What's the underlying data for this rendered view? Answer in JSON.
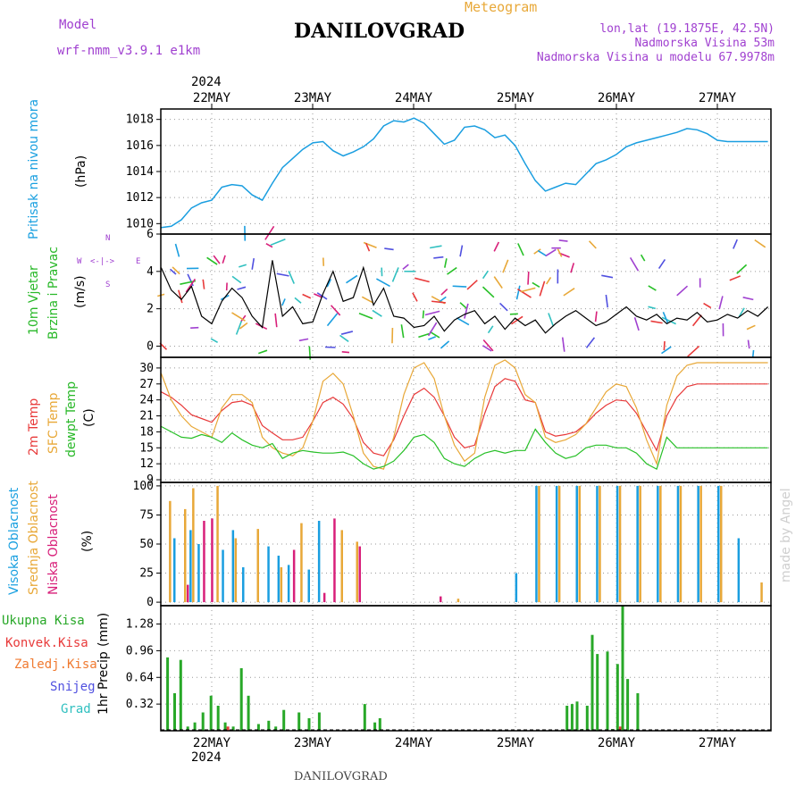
{
  "header": {
    "model_label": "Model",
    "model_name": "wrf-nmm_v3.9.1 e1km",
    "station": "DANILOVGRAD",
    "product": "Meteogram",
    "lonlat": "lon,lat (19.1875E, 42.5N)",
    "elevation": "Nadmorska Visina 53m",
    "model_elevation": "Nadmorska Visina u modelu 67.9978m",
    "footer_station": "DANILOVGRAD",
    "watermark": "made by Angel"
  },
  "colors": {
    "pressure": "#1a9ee0",
    "temp2m": "#e83a3a",
    "sfc": "#e8a838",
    "dewpt": "#28c028",
    "high_cloud": "#1a9ee0",
    "mid_cloud": "#e8a838",
    "low_cloud": "#d8207a",
    "ukupna": "#28a828",
    "konvek": "#e83a3a",
    "zaledj": "#f07a30",
    "snijeg": "#5050e0",
    "grad": "#30c0c0",
    "purple_text": "#a040d0",
    "orange_text": "#e8a838"
  },
  "chart_data": [
    {
      "type": "line",
      "panel": "pressure",
      "ylabel": "Pritisak na nivou mora",
      "unit": "(hPa)",
      "ylim": [
        1009.2,
        1018.8
      ],
      "yticks": [
        1010,
        1012,
        1014,
        1016,
        1018
      ],
      "x_days": [
        0,
        0.1,
        0.2,
        0.3,
        0.4,
        0.5,
        0.6,
        0.7,
        0.8,
        0.9,
        1.0,
        1.1,
        1.2,
        1.3,
        1.4,
        1.5,
        1.6,
        1.7,
        1.8,
        1.9,
        2.0,
        2.1,
        2.2,
        2.3,
        2.4,
        2.5,
        2.6,
        2.7,
        2.8,
        2.9,
        3.0,
        3.1,
        3.2,
        3.3,
        3.4,
        3.5,
        3.6,
        3.7,
        3.8,
        3.9,
        4.0,
        4.1,
        4.2,
        4.3,
        4.4,
        4.5,
        4.6,
        4.7,
        4.8,
        4.9,
        5.0,
        5.1,
        5.2,
        5.3,
        5.4,
        5.5,
        5.6,
        5.7,
        5.8,
        5.9,
        6.0
      ],
      "series": [
        {
          "values": [
            1009.7,
            1009.8,
            1010.3,
            1011.2,
            1011.6,
            1011.8,
            1012.8,
            1013.0,
            1012.9,
            1012.2,
            1011.8,
            1013.1,
            1014.3,
            1015.0,
            1015.7,
            1016.2,
            1016.3,
            1015.6,
            1015.2,
            1015.5,
            1015.9,
            1016.5,
            1017.5,
            1017.9,
            1017.8,
            1018.1,
            1017.7,
            1016.9,
            1016.1,
            1016.4,
            1017.4,
            1017.5,
            1017.2,
            1016.6,
            1016.8,
            1016.0,
            1014.6,
            1013.3,
            1012.5,
            1012.8,
            1013.1,
            1013.0,
            1013.8,
            1014.6,
            1014.9,
            1015.3,
            1015.9,
            1016.2,
            1016.4,
            1016.6,
            1016.8,
            1017.0,
            1017.3,
            1017.2,
            1016.9,
            1016.4,
            1016.3,
            1016.3,
            1016.3,
            1016.3,
            1016.3
          ]
        }
      ]
    },
    {
      "type": "line",
      "panel": "wind",
      "ylabel": [
        "10m Vjetar",
        "Brzina i Pravac"
      ],
      "unit": "(m/s)",
      "ylim": [
        -0.6,
        6
      ],
      "yticks": [
        0,
        2,
        4,
        6
      ],
      "compass": {
        "n": "N",
        "s": "S",
        "e": "E",
        "w": "W",
        "arrow": "<-|->"
      },
      "x_days": [
        0,
        0.1,
        0.2,
        0.3,
        0.4,
        0.5,
        0.6,
        0.7,
        0.8,
        0.9,
        1.0,
        1.1,
        1.2,
        1.3,
        1.4,
        1.5,
        1.6,
        1.7,
        1.8,
        1.9,
        2.0,
        2.1,
        2.2,
        2.3,
        2.4,
        2.5,
        2.6,
        2.7,
        2.8,
        2.9,
        3.0,
        3.1,
        3.2,
        3.3,
        3.4,
        3.5,
        3.6,
        3.7,
        3.8,
        3.9,
        4.0,
        4.1,
        4.2,
        4.3,
        4.4,
        4.5,
        4.6,
        4.7,
        4.8,
        4.9,
        5.0,
        5.1,
        5.2,
        5.3,
        5.4,
        5.5,
        5.6,
        5.7,
        5.8,
        5.9,
        6.0
      ],
      "series": [
        {
          "values": [
            4.2,
            3.0,
            2.5,
            3.2,
            1.6,
            1.2,
            2.4,
            3.1,
            2.6,
            1.6,
            1.0,
            4.6,
            1.6,
            2.1,
            1.2,
            1.3,
            2.8,
            4.0,
            2.4,
            2.6,
            4.2,
            2.2,
            3.1,
            1.6,
            1.5,
            1.0,
            1.1,
            1.6,
            0.8,
            1.4,
            1.7,
            1.9,
            1.2,
            1.6,
            0.9,
            1.5,
            1.1,
            1.4,
            0.7,
            1.2,
            1.6,
            1.9,
            1.5,
            1.1,
            1.3,
            1.7,
            2.1,
            1.6,
            1.4,
            1.7,
            1.2,
            1.5,
            1.4,
            1.8,
            1.3,
            1.4,
            1.7,
            1.5,
            1.9,
            1.6,
            2.1
          ]
        }
      ]
    },
    {
      "type": "line",
      "panel": "temperature",
      "ylabel": [
        "2m Temp",
        "SFC Temp",
        "dewpt Temp"
      ],
      "unit": "(C)",
      "ylim": [
        8.5,
        32
      ],
      "yticks": [
        9,
        12,
        15,
        18,
        21,
        24,
        27,
        30
      ],
      "x_days": [
        0,
        0.1,
        0.2,
        0.3,
        0.4,
        0.5,
        0.6,
        0.7,
        0.8,
        0.9,
        1.0,
        1.1,
        1.2,
        1.3,
        1.4,
        1.5,
        1.6,
        1.7,
        1.8,
        1.9,
        2.0,
        2.1,
        2.2,
        2.3,
        2.4,
        2.5,
        2.6,
        2.7,
        2.8,
        2.9,
        3.0,
        3.1,
        3.2,
        3.3,
        3.4,
        3.5,
        3.6,
        3.7,
        3.8,
        3.9,
        4.0,
        4.1,
        4.2,
        4.3,
        4.4,
        4.5,
        4.6,
        4.7,
        4.8,
        4.9,
        5.0,
        5.1,
        5.2,
        5.3,
        5.4,
        5.5,
        5.6,
        5.7,
        5.8,
        5.9,
        6.0
      ],
      "series": [
        {
          "name": "2m Temp",
          "values": [
            25.5,
            24.5,
            23.0,
            21.2,
            20.5,
            19.8,
            22.0,
            23.5,
            23.8,
            23.0,
            19.2,
            17.8,
            16.5,
            16.5,
            17.0,
            20.0,
            23.5,
            24.5,
            23.2,
            20.5,
            16.0,
            14.0,
            13.5,
            16.5,
            21.0,
            25.0,
            26.2,
            24.5,
            21.0,
            17.0,
            15.0,
            15.5,
            21.5,
            26.5,
            28.0,
            27.5,
            24.0,
            23.5,
            18.0,
            17.2,
            17.5,
            18.0,
            19.5,
            21.5,
            23.0,
            24.0,
            23.8,
            21.5,
            18.0,
            14.5,
            21.0,
            24.5,
            26.5,
            27.0,
            27.0,
            27.0,
            27.0,
            27.0,
            27.0,
            27.0,
            27.0
          ]
        },
        {
          "name": "SFC Temp",
          "values": [
            29.0,
            24.0,
            21.0,
            19.0,
            18.0,
            17.0,
            22.5,
            25.0,
            25.0,
            23.5,
            17.0,
            15.0,
            14.0,
            13.5,
            15.0,
            20.0,
            27.5,
            29.0,
            27.0,
            21.0,
            14.0,
            11.5,
            11.0,
            17.0,
            25.0,
            30.0,
            31.0,
            28.0,
            21.0,
            15.5,
            12.5,
            14.0,
            24.5,
            30.5,
            31.5,
            30.0,
            25.0,
            23.5,
            17.0,
            16.0,
            16.5,
            17.5,
            19.5,
            22.5,
            25.5,
            27.0,
            26.5,
            22.5,
            16.5,
            12.0,
            23.0,
            28.5,
            30.5,
            31.0,
            31.0,
            31.0,
            31.0,
            31.0,
            31.0,
            31.0,
            31.0
          ]
        },
        {
          "name": "dewpt Temp",
          "values": [
            19.0,
            18.0,
            17.0,
            16.8,
            17.5,
            17.0,
            16.0,
            17.8,
            16.5,
            15.5,
            15.0,
            15.8,
            13.0,
            14.0,
            14.5,
            14.2,
            14.0,
            14.0,
            14.2,
            13.5,
            12.0,
            11.0,
            11.5,
            12.5,
            14.5,
            17.0,
            17.5,
            16.0,
            13.0,
            12.0,
            11.5,
            13.0,
            14.0,
            14.5,
            14.0,
            14.5,
            14.5,
            18.5,
            16.0,
            14.0,
            13.0,
            13.5,
            15.0,
            15.5,
            15.5,
            15.0,
            15.0,
            14.0,
            12.0,
            11.0,
            17.0,
            15.0,
            15.0,
            15.0,
            15.0,
            15.0,
            15.0,
            15.0,
            15.0,
            15.0,
            15.0
          ]
        }
      ]
    },
    {
      "type": "bar",
      "panel": "clouds",
      "ylabel": [
        "Visoka Oblacnost",
        "Srednja Oblacnost",
        "Niska Oblacnost"
      ],
      "unit": "(%)",
      "ylim": [
        -3,
        103
      ],
      "yticks": [
        0,
        25,
        50,
        75,
        100
      ],
      "x_days": [
        0.05,
        0.12,
        0.2,
        0.28,
        0.36,
        0.44,
        0.52,
        0.6,
        0.7,
        0.8,
        0.92,
        1.05,
        1.15,
        1.25,
        1.35,
        1.45,
        1.55,
        1.65,
        1.75,
        1.9,
        2.1,
        2.3,
        2.5,
        2.7,
        2.9,
        3.1,
        3.3,
        3.5,
        3.7,
        3.9,
        4.1,
        4.3,
        4.5,
        4.7,
        4.9,
        5.1,
        5.3,
        5.5,
        5.7,
        5.9
      ],
      "series": [
        {
          "name": "Visoka Oblacnost",
          "values": [
            0,
            55,
            0,
            62,
            50,
            0,
            0,
            45,
            62,
            30,
            0,
            48,
            40,
            32,
            0,
            28,
            70,
            0,
            0,
            0,
            0,
            0,
            0,
            0,
            0,
            0,
            0,
            25,
            100,
            100,
            100,
            100,
            100,
            100,
            100,
            100,
            100,
            100,
            55,
            0
          ]
        },
        {
          "name": "Srednja Oblacnost",
          "values": [
            87,
            0,
            80,
            98,
            0,
            0,
            100,
            0,
            55,
            0,
            63,
            0,
            30,
            0,
            68,
            0,
            0,
            0,
            62,
            52,
            0,
            0,
            0,
            0,
            3,
            0,
            0,
            0,
            100,
            100,
            100,
            100,
            100,
            100,
            100,
            100,
            100,
            100,
            0,
            17
          ]
        },
        {
          "name": "Niska Oblacnost",
          "values": [
            0,
            0,
            15,
            0,
            70,
            72,
            0,
            0,
            0,
            0,
            0,
            0,
            0,
            45,
            0,
            0,
            8,
            72,
            0,
            48,
            0,
            0,
            0,
            5,
            0,
            0,
            0,
            0,
            0,
            0,
            0,
            0,
            0,
            0,
            0,
            0,
            0,
            0,
            0,
            0
          ]
        }
      ]
    },
    {
      "type": "bar",
      "panel": "precipitation",
      "ylabel": "1hr Precip",
      "unit": "(mm)",
      "legend": [
        "Ukupna Kisa",
        "Konvek.Kisa",
        "Zaledj.Kisa",
        "Snijeg",
        "Grad"
      ],
      "ylim": [
        0,
        1.5
      ],
      "yticks": [
        0.32,
        0.64,
        0.96,
        1.28
      ],
      "x_days": [
        0.05,
        0.12,
        0.18,
        0.25,
        0.32,
        0.4,
        0.48,
        0.55,
        0.62,
        0.7,
        0.78,
        0.85,
        0.95,
        1.05,
        1.12,
        1.2,
        1.35,
        1.45,
        1.55,
        2.0,
        2.1,
        2.15,
        4.0,
        4.05,
        4.1,
        4.15,
        4.2,
        4.25,
        4.3,
        4.4,
        4.45,
        4.5,
        4.55,
        4.6,
        4.7
      ],
      "series": [
        {
          "name": "Ukupna Kisa",
          "values": [
            0.88,
            0.45,
            0.85,
            0.05,
            0.1,
            0.22,
            0.42,
            0.3,
            0.1,
            0.05,
            0.75,
            0.42,
            0.08,
            0.12,
            0.05,
            0.25,
            0.22,
            0.15,
            0.22,
            0.32,
            0.1,
            0.15,
            0.3,
            0.32,
            0.35,
            0.02,
            0.3,
            1.15,
            0.92,
            0.95,
            0.02,
            0.8,
            1.5,
            0.62,
            0.45
          ]
        },
        {
          "name": "Konvek.Kisa",
          "values": [
            0,
            0,
            0,
            0,
            0,
            0,
            0,
            0,
            0.05,
            0,
            0,
            0,
            0,
            0,
            0,
            0,
            0,
            0,
            0,
            0,
            0,
            0,
            0,
            0,
            0,
            0,
            0,
            0,
            0,
            0,
            0,
            0.05,
            0,
            0,
            0
          ]
        }
      ]
    }
  ],
  "x_axis": {
    "day_labels": [
      "22MAY",
      "23MAY",
      "24MAY",
      "25MAY",
      "26MAY",
      "27MAY"
    ],
    "year": "2024"
  }
}
